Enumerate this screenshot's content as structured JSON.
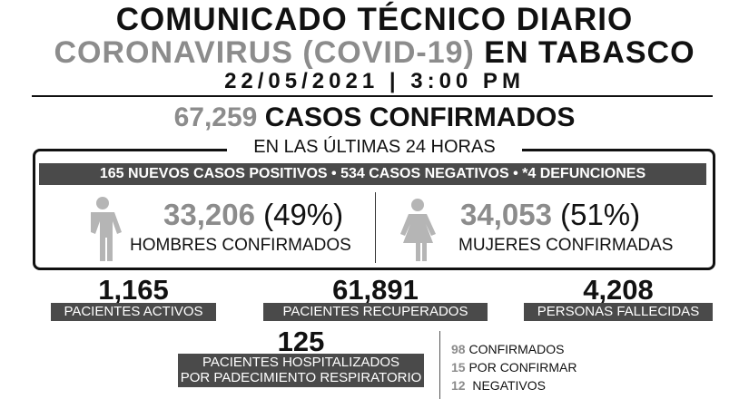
{
  "header": {
    "title": "COMUNICADO TÉCNICO DIARIO",
    "subtitle_gray": "CORONAVIRUS (COVID-19)",
    "subtitle_black": "EN TABASCO",
    "datetime": "22/05/2021 | 3:00 PM"
  },
  "total": {
    "value": "67,259",
    "label": "CASOS CONFIRMADOS"
  },
  "last24": {
    "label": "EN LAS ÚLTIMAS 24 HORAS",
    "summary": "165 NUEVOS CASOS POSITIVOS • 534 CASOS NEGATIVOS •  *4 DEFUNCIONES"
  },
  "men": {
    "icon": "man-icon",
    "value": "33,206",
    "pct": "(49%)",
    "label": "HOMBRES CONFIRMADOS"
  },
  "women": {
    "icon": "woman-icon",
    "value": "34,053",
    "pct": "(51%)",
    "label": "MUJERES CONFIRMADAS"
  },
  "stats": {
    "active": {
      "value": "1,165",
      "label": "PACIENTES ACTIVOS"
    },
    "recovered": {
      "value": "61,891",
      "label": "PACIENTES RECUPERADOS"
    },
    "deaths": {
      "value": "4,208",
      "label": "PERSONAS FALLECIDAS"
    }
  },
  "hospital": {
    "value": "125",
    "label1": "PACIENTES HOSPITALIZADOS",
    "label2": "POR PADECIMIENTO RESPIRATORIO",
    "breakdown": [
      {
        "n": "98",
        "label": "CONFIRMADOS"
      },
      {
        "n": "15",
        "label": "POR CONFIRMAR"
      },
      {
        "n": "12",
        "label": " NEGATIVOS"
      }
    ]
  },
  "colors": {
    "gray_text": "#8c8c8c",
    "dark_bar": "#4a4a4a",
    "icon_gray": "#b5b5b5"
  }
}
